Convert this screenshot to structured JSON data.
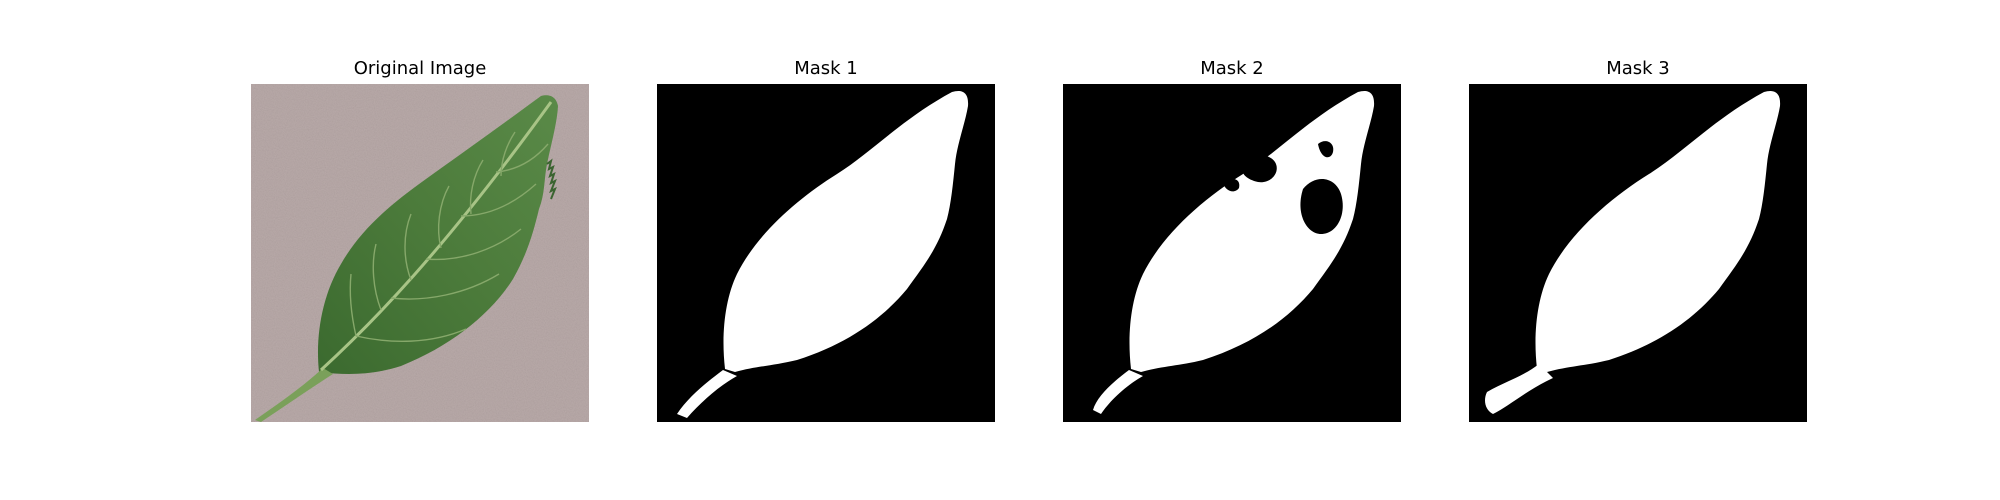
{
  "figure": {
    "background": "#ffffff",
    "panels": [
      {
        "title": "Original Image",
        "kind": "photo"
      },
      {
        "title": "Mask 1",
        "kind": "mask"
      },
      {
        "title": "Mask 2",
        "kind": "mask"
      },
      {
        "title": "Mask 3",
        "kind": "mask"
      }
    ]
  },
  "colors": {
    "mask_background": "#000000",
    "mask_foreground": "#ffffff",
    "photo_background": "#b8a9a8",
    "leaf_dark": "#3f6b33",
    "leaf_mid": "#4f7d3e",
    "leaf_vein": "#9dbb7c"
  }
}
